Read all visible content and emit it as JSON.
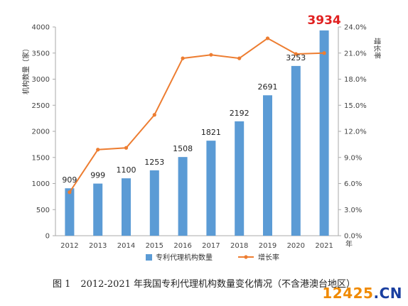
{
  "chart_data": {
    "type": "bar+line",
    "categories": [
      "2012",
      "2013",
      "2014",
      "2015",
      "2016",
      "2017",
      "2018",
      "2019",
      "2020",
      "2021"
    ],
    "x_unit": "年",
    "series": [
      {
        "name": "专利代理机构数量",
        "type": "bar",
        "axis": "left",
        "values": [
          909,
          999,
          1100,
          1253,
          1508,
          1821,
          2192,
          2691,
          3253,
          3934
        ]
      },
      {
        "name": "增长率",
        "type": "line",
        "axis": "right",
        "values": [
          5.0,
          9.9,
          10.1,
          13.9,
          20.4,
          20.8,
          20.4,
          22.7,
          20.9,
          21.0
        ]
      }
    ],
    "data_labels": [
      "909",
      "999",
      "1100",
      "1253",
      "1508",
      "1821",
      "2192",
      "2691",
      "3253",
      "3934"
    ],
    "highlight_index": 9,
    "ylabel_left": "机构数量（家）",
    "ylabel_right": "增长率",
    "ylim_left": [
      0,
      4000
    ],
    "ylim_right": [
      0,
      24
    ],
    "left_ticks": [
      "0",
      "500",
      "1000",
      "1500",
      "2000",
      "2500",
      "3000",
      "3500",
      "4000"
    ],
    "right_ticks": [
      "0.0%",
      "3.0%",
      "6.0%",
      "9.0%",
      "12.0%",
      "15.0%",
      "18.0%",
      "21.0%",
      "24.0%"
    ],
    "legend_position": "bottom",
    "grid": false,
    "colors": {
      "bar": "#5b9bd5",
      "line": "#ed7d31",
      "highlight": "#e02020"
    }
  },
  "caption": {
    "number": "图 1",
    "text": "2012-2021 年我国专利代理机构数量变化情况（不含港澳台地区）"
  },
  "watermark": {
    "main": "12425",
    "suffix": ".CN"
  }
}
